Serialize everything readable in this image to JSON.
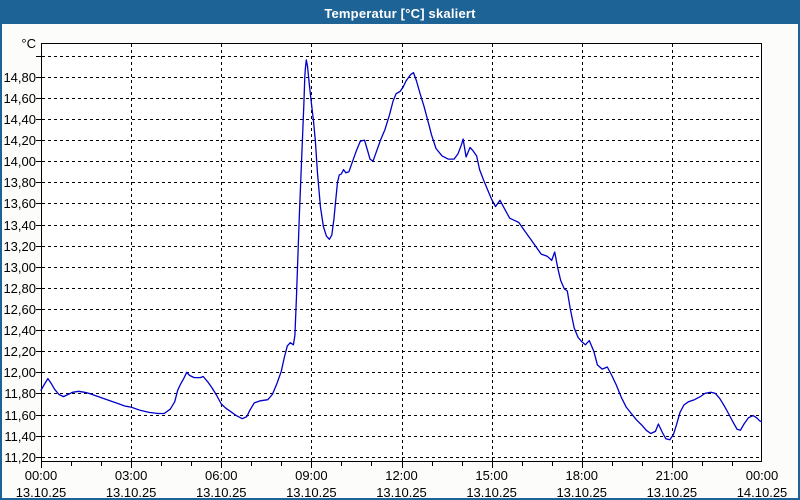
{
  "window": {
    "title": "Temperatur [°C] skaliert"
  },
  "colors": {
    "titlebar": "#1E6396",
    "window_border": "#1E6396",
    "line": "#0000C8",
    "grid": "#000000",
    "plot_background": "#FFFFFF",
    "text": "#000000"
  },
  "chart_data": {
    "type": "line",
    "title": "Temperatur [°C] skaliert",
    "y_unit_label": "°C",
    "xlabel": "",
    "ylabel": "°C",
    "grid": "dashed",
    "legend": "none",
    "ylim": [
      11.15,
      15.12
    ],
    "x_hours_range": [
      0,
      24
    ],
    "x_minor_tick_every_hours": 1,
    "y_ticks": [
      {
        "value": 15.0,
        "label": ""
      },
      {
        "value": 14.8,
        "label": "14,80"
      },
      {
        "value": 14.6,
        "label": "14,60"
      },
      {
        "value": 14.4,
        "label": "14,40"
      },
      {
        "value": 14.2,
        "label": "14,20"
      },
      {
        "value": 14.0,
        "label": "14,00"
      },
      {
        "value": 13.8,
        "label": "13,80"
      },
      {
        "value": 13.6,
        "label": "13,60"
      },
      {
        "value": 13.4,
        "label": "13,40"
      },
      {
        "value": 13.2,
        "label": "13,20"
      },
      {
        "value": 13.0,
        "label": "13,00"
      },
      {
        "value": 12.8,
        "label": "12,80"
      },
      {
        "value": 12.6,
        "label": "12,60"
      },
      {
        "value": 12.4,
        "label": "12,40"
      },
      {
        "value": 12.2,
        "label": "12,20"
      },
      {
        "value": 12.0,
        "label": "12,00"
      },
      {
        "value": 11.8,
        "label": "11,80"
      },
      {
        "value": 11.6,
        "label": "11,60"
      },
      {
        "value": 11.4,
        "label": "11,40"
      },
      {
        "value": 11.2,
        "label": "11,20"
      }
    ],
    "x_major_ticks": [
      {
        "hour": 0,
        "time": "00:00",
        "date": "13.10.25"
      },
      {
        "hour": 3,
        "time": "03:00",
        "date": "13.10.25"
      },
      {
        "hour": 6,
        "time": "06:00",
        "date": "13.10.25"
      },
      {
        "hour": 9,
        "time": "09:00",
        "date": "13.10.25"
      },
      {
        "hour": 12,
        "time": "12:00",
        "date": "13.10.25"
      },
      {
        "hour": 15,
        "time": "15:00",
        "date": "13.10.25"
      },
      {
        "hour": 18,
        "time": "18:00",
        "date": "13.10.25"
      },
      {
        "hour": 21,
        "time": "21:00",
        "date": "13.10.25"
      },
      {
        "hour": 24,
        "time": "00:00",
        "date": "14.10.25"
      }
    ],
    "series": [
      {
        "name": "Temperatur",
        "color": "#0000C8",
        "points": [
          [
            0.0,
            11.83
          ],
          [
            0.1,
            11.88
          ],
          [
            0.23,
            11.94
          ],
          [
            0.35,
            11.89
          ],
          [
            0.45,
            11.84
          ],
          [
            0.6,
            11.79
          ],
          [
            0.75,
            11.77
          ],
          [
            0.9,
            11.79
          ],
          [
            1.05,
            11.81
          ],
          [
            1.25,
            11.82
          ],
          [
            1.45,
            11.81
          ],
          [
            1.6,
            11.8
          ],
          [
            1.8,
            11.78
          ],
          [
            2.0,
            11.76
          ],
          [
            2.2,
            11.74
          ],
          [
            2.5,
            11.71
          ],
          [
            2.8,
            11.68
          ],
          [
            3.0,
            11.67
          ],
          [
            3.3,
            11.64
          ],
          [
            3.6,
            11.62
          ],
          [
            3.9,
            11.61
          ],
          [
            4.1,
            11.61
          ],
          [
            4.3,
            11.65
          ],
          [
            4.45,
            11.72
          ],
          [
            4.55,
            11.83
          ],
          [
            4.65,
            11.89
          ],
          [
            4.75,
            11.94
          ],
          [
            4.85,
            12.0
          ],
          [
            4.95,
            11.97
          ],
          [
            5.1,
            11.95
          ],
          [
            5.3,
            11.95
          ],
          [
            5.4,
            11.96
          ],
          [
            5.55,
            11.91
          ],
          [
            5.7,
            11.85
          ],
          [
            5.85,
            11.78
          ],
          [
            6.0,
            11.7
          ],
          [
            6.15,
            11.66
          ],
          [
            6.3,
            11.63
          ],
          [
            6.5,
            11.59
          ],
          [
            6.7,
            11.56
          ],
          [
            6.85,
            11.58
          ],
          [
            6.95,
            11.64
          ],
          [
            7.1,
            11.71
          ],
          [
            7.3,
            11.73
          ],
          [
            7.55,
            11.74
          ],
          [
            7.7,
            11.79
          ],
          [
            7.85,
            11.89
          ],
          [
            8.0,
            12.01
          ],
          [
            8.1,
            12.14
          ],
          [
            8.2,
            12.25
          ],
          [
            8.3,
            12.28
          ],
          [
            8.4,
            12.26
          ],
          [
            8.45,
            12.35
          ],
          [
            8.5,
            12.7
          ],
          [
            8.55,
            13.1
          ],
          [
            8.6,
            13.5
          ],
          [
            8.65,
            13.85
          ],
          [
            8.7,
            14.2
          ],
          [
            8.75,
            14.55
          ],
          [
            8.78,
            14.8
          ],
          [
            8.8,
            14.88
          ],
          [
            8.83,
            14.96
          ],
          [
            8.87,
            14.9
          ],
          [
            8.93,
            14.73
          ],
          [
            9.0,
            14.55
          ],
          [
            9.07,
            14.38
          ],
          [
            9.13,
            14.2
          ],
          [
            9.2,
            13.9
          ],
          [
            9.3,
            13.57
          ],
          [
            9.4,
            13.38
          ],
          [
            9.5,
            13.29
          ],
          [
            9.6,
            13.26
          ],
          [
            9.68,
            13.3
          ],
          [
            9.75,
            13.45
          ],
          [
            9.8,
            13.6
          ],
          [
            9.87,
            13.8
          ],
          [
            9.93,
            13.87
          ],
          [
            10.0,
            13.88
          ],
          [
            10.07,
            13.92
          ],
          [
            10.15,
            13.89
          ],
          [
            10.25,
            13.9
          ],
          [
            10.35,
            13.98
          ],
          [
            10.5,
            14.1
          ],
          [
            10.63,
            14.19
          ],
          [
            10.77,
            14.2
          ],
          [
            10.87,
            14.1
          ],
          [
            10.95,
            14.02
          ],
          [
            11.05,
            14.0
          ],
          [
            11.15,
            14.08
          ],
          [
            11.3,
            14.2
          ],
          [
            11.45,
            14.3
          ],
          [
            11.6,
            14.44
          ],
          [
            11.72,
            14.57
          ],
          [
            11.82,
            14.64
          ],
          [
            11.95,
            14.66
          ],
          [
            12.05,
            14.7
          ],
          [
            12.15,
            14.76
          ],
          [
            12.3,
            14.82
          ],
          [
            12.4,
            14.84
          ],
          [
            12.5,
            14.76
          ],
          [
            12.62,
            14.64
          ],
          [
            12.75,
            14.52
          ],
          [
            12.9,
            14.36
          ],
          [
            13.0,
            14.25
          ],
          [
            13.15,
            14.12
          ],
          [
            13.35,
            14.05
          ],
          [
            13.55,
            14.02
          ],
          [
            13.75,
            14.02
          ],
          [
            13.88,
            14.07
          ],
          [
            14.0,
            14.16
          ],
          [
            14.05,
            14.21
          ],
          [
            14.15,
            14.04
          ],
          [
            14.28,
            14.13
          ],
          [
            14.38,
            14.1
          ],
          [
            14.5,
            14.05
          ],
          [
            14.6,
            13.92
          ],
          [
            14.72,
            13.83
          ],
          [
            14.88,
            13.72
          ],
          [
            15.0,
            13.64
          ],
          [
            15.13,
            13.57
          ],
          [
            15.28,
            13.63
          ],
          [
            15.45,
            13.54
          ],
          [
            15.6,
            13.46
          ],
          [
            15.75,
            13.44
          ],
          [
            15.9,
            13.42
          ],
          [
            16.05,
            13.36
          ],
          [
            16.2,
            13.3
          ],
          [
            16.35,
            13.24
          ],
          [
            16.5,
            13.18
          ],
          [
            16.65,
            13.12
          ],
          [
            16.85,
            13.1
          ],
          [
            17.0,
            13.06
          ],
          [
            17.1,
            13.14
          ],
          [
            17.2,
            12.99
          ],
          [
            17.3,
            12.87
          ],
          [
            17.42,
            12.79
          ],
          [
            17.52,
            12.77
          ],
          [
            17.62,
            12.6
          ],
          [
            17.75,
            12.42
          ],
          [
            17.88,
            12.33
          ],
          [
            18.0,
            12.29
          ],
          [
            18.12,
            12.26
          ],
          [
            18.25,
            12.3
          ],
          [
            18.4,
            12.2
          ],
          [
            18.52,
            12.07
          ],
          [
            18.68,
            12.03
          ],
          [
            18.85,
            12.05
          ],
          [
            19.0,
            11.97
          ],
          [
            19.15,
            11.88
          ],
          [
            19.32,
            11.76
          ],
          [
            19.48,
            11.67
          ],
          [
            19.65,
            11.61
          ],
          [
            19.82,
            11.55
          ],
          [
            20.0,
            11.5
          ],
          [
            20.15,
            11.45
          ],
          [
            20.3,
            11.42
          ],
          [
            20.45,
            11.44
          ],
          [
            20.55,
            11.51
          ],
          [
            20.68,
            11.43
          ],
          [
            20.8,
            11.37
          ],
          [
            20.93,
            11.36
          ],
          [
            21.05,
            11.41
          ],
          [
            21.15,
            11.5
          ],
          [
            21.27,
            11.62
          ],
          [
            21.4,
            11.69
          ],
          [
            21.55,
            11.72
          ],
          [
            21.75,
            11.74
          ],
          [
            21.95,
            11.77
          ],
          [
            22.1,
            11.8
          ],
          [
            22.3,
            11.81
          ],
          [
            22.45,
            11.8
          ],
          [
            22.6,
            11.75
          ],
          [
            22.75,
            11.68
          ],
          [
            22.9,
            11.6
          ],
          [
            23.05,
            11.52
          ],
          [
            23.17,
            11.46
          ],
          [
            23.28,
            11.45
          ],
          [
            23.4,
            11.51
          ],
          [
            23.55,
            11.57
          ],
          [
            23.7,
            11.59
          ],
          [
            23.82,
            11.57
          ],
          [
            23.92,
            11.54
          ],
          [
            24.0,
            11.53
          ]
        ]
      }
    ]
  }
}
